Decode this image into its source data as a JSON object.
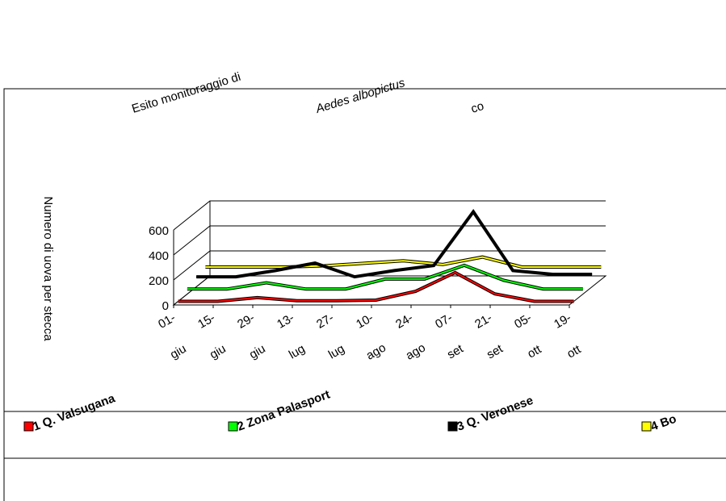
{
  "chart_data": {
    "type": "line3d",
    "title": [
      "Esito monitoraggio di",
      "Aedes albopictus",
      "co"
    ],
    "y_label": "Numero di uova per stecca",
    "categories": [
      [
        "01-",
        "giu"
      ],
      [
        "15-",
        "giu"
      ],
      [
        "29-",
        "giu"
      ],
      [
        "13-",
        "lug"
      ],
      [
        "27-",
        "lug"
      ],
      [
        "10-",
        "ago"
      ],
      [
        "24-",
        "ago"
      ],
      [
        "07-",
        "set"
      ],
      [
        "21-",
        "set"
      ],
      [
        "05-",
        "ott"
      ],
      [
        "19-",
        "ott"
      ]
    ],
    "ylim": [
      0,
      600
    ],
    "yticks": [
      0,
      200,
      400,
      600
    ],
    "grid": true,
    "series": [
      {
        "name": "1 Q. Valsugana",
        "color": "#ff0000",
        "values": [
          0,
          0,
          30,
          5,
          5,
          10,
          80,
          230,
          60,
          0,
          0
        ]
      },
      {
        "name": "2 Zona Palasport",
        "color": "#00ff00",
        "values": [
          40,
          40,
          90,
          40,
          40,
          120,
          120,
          230,
          110,
          40,
          40
        ]
      },
      {
        "name": "3 Q. Veronese",
        "color": "#000000",
        "values": [
          80,
          80,
          130,
          190,
          80,
          130,
          170,
          600,
          130,
          100,
          100
        ]
      },
      {
        "name": "4 Bo",
        "color": "#ffff00",
        "values": [
          100,
          100,
          100,
          110,
          130,
          150,
          120,
          180,
          100,
          100,
          100
        ]
      }
    ]
  }
}
